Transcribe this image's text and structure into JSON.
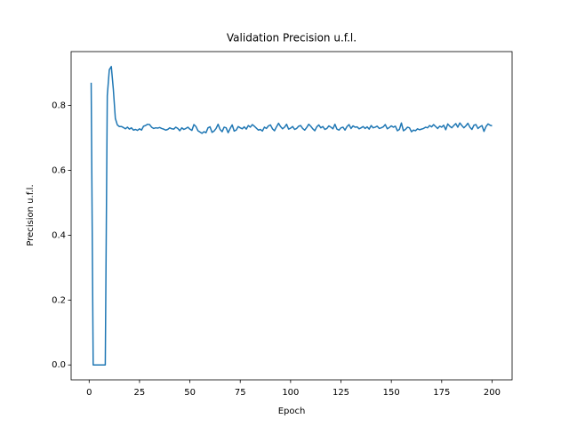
{
  "chart_data": {
    "type": "line",
    "title": "Validation Precision u.f.l.",
    "x_label": "Epoch",
    "y_label": "Precision u.f.l.",
    "color": "#1f77b4",
    "x": [
      1,
      2,
      3,
      4,
      5,
      6,
      7,
      8,
      9,
      10,
      11,
      12,
      13,
      14,
      15,
      16,
      17,
      18,
      19,
      20,
      21,
      22,
      23,
      24,
      25,
      26,
      27,
      28,
      29,
      30,
      31,
      32,
      33,
      34,
      35,
      36,
      37,
      38,
      39,
      40,
      41,
      42,
      43,
      44,
      45,
      46,
      47,
      48,
      49,
      50,
      51,
      52,
      53,
      54,
      55,
      56,
      57,
      58,
      59,
      60,
      61,
      62,
      63,
      64,
      65,
      66,
      67,
      68,
      69,
      70,
      71,
      72,
      73,
      74,
      75,
      76,
      77,
      78,
      79,
      80,
      81,
      82,
      83,
      84,
      85,
      86,
      87,
      88,
      89,
      90,
      91,
      92,
      93,
      94,
      95,
      96,
      97,
      98,
      99,
      100,
      101,
      102,
      103,
      104,
      105,
      106,
      107,
      108,
      109,
      110,
      111,
      112,
      113,
      114,
      115,
      116,
      117,
      118,
      119,
      120,
      121,
      122,
      123,
      124,
      125,
      126,
      127,
      128,
      129,
      130,
      131,
      132,
      133,
      134,
      135,
      136,
      137,
      138,
      139,
      140,
      141,
      142,
      143,
      144,
      145,
      146,
      147,
      148,
      149,
      150,
      151,
      152,
      153,
      154,
      155,
      156,
      157,
      158,
      159,
      160,
      161,
      162,
      163,
      164,
      165,
      166,
      167,
      168,
      169,
      170,
      171,
      172,
      173,
      174,
      175,
      176,
      177,
      178,
      179,
      180,
      181,
      182,
      183,
      184,
      185,
      186,
      187,
      188,
      189,
      190,
      191,
      192,
      193,
      194,
      195,
      196,
      197,
      198,
      199,
      200
    ],
    "values": [
      0.87,
      0,
      0,
      0,
      0,
      0,
      0,
      0,
      0.83,
      0.91,
      0.92,
      0.85,
      0.76,
      0.74,
      0.735,
      0.735,
      0.732,
      0.728,
      0.733,
      0.727,
      0.731,
      0.724,
      0.726,
      0.723,
      0.728,
      0.724,
      0.736,
      0.738,
      0.742,
      0.741,
      0.733,
      0.729,
      0.731,
      0.73,
      0.732,
      0.729,
      0.727,
      0.724,
      0.726,
      0.731,
      0.728,
      0.727,
      0.733,
      0.729,
      0.722,
      0.731,
      0.726,
      0.729,
      0.733,
      0.727,
      0.723,
      0.741,
      0.735,
      0.722,
      0.718,
      0.714,
      0.719,
      0.716,
      0.731,
      0.734,
      0.717,
      0.721,
      0.729,
      0.742,
      0.726,
      0.719,
      0.733,
      0.731,
      0.716,
      0.729,
      0.74,
      0.721,
      0.724,
      0.735,
      0.731,
      0.728,
      0.734,
      0.727,
      0.738,
      0.733,
      0.741,
      0.736,
      0.73,
      0.724,
      0.726,
      0.721,
      0.733,
      0.729,
      0.737,
      0.74,
      0.728,
      0.722,
      0.734,
      0.745,
      0.735,
      0.728,
      0.733,
      0.742,
      0.727,
      0.73,
      0.735,
      0.726,
      0.729,
      0.736,
      0.738,
      0.729,
      0.724,
      0.732,
      0.742,
      0.736,
      0.728,
      0.722,
      0.734,
      0.74,
      0.731,
      0.735,
      0.726,
      0.729,
      0.737,
      0.733,
      0.728,
      0.742,
      0.727,
      0.724,
      0.731,
      0.733,
      0.724,
      0.735,
      0.741,
      0.729,
      0.737,
      0.733,
      0.734,
      0.728,
      0.731,
      0.735,
      0.729,
      0.734,
      0.727,
      0.738,
      0.731,
      0.733,
      0.736,
      0.729,
      0.731,
      0.734,
      0.741,
      0.728,
      0.732,
      0.737,
      0.733,
      0.736,
      0.722,
      0.726,
      0.746,
      0.722,
      0.726,
      0.733,
      0.731,
      0.719,
      0.724,
      0.722,
      0.728,
      0.725,
      0.727,
      0.729,
      0.733,
      0.731,
      0.738,
      0.734,
      0.741,
      0.735,
      0.729,
      0.736,
      0.733,
      0.739,
      0.725,
      0.743,
      0.736,
      0.731,
      0.738,
      0.744,
      0.733,
      0.746,
      0.738,
      0.731,
      0.737,
      0.745,
      0.733,
      0.726,
      0.739,
      0.741,
      0.729,
      0.734,
      0.738,
      0.72,
      0.735,
      0.743,
      0.739,
      0.737
    ],
    "xlim": [
      -8.95,
      209.95
    ],
    "xticks": [
      0,
      25,
      50,
      75,
      100,
      125,
      150,
      175,
      200
    ],
    "ylim": [
      -0.046,
      0.966
    ],
    "yticks": [
      {
        "value": 0,
        "label": "0.0"
      },
      0.2,
      0.4,
      0.6,
      0.8
    ]
  }
}
